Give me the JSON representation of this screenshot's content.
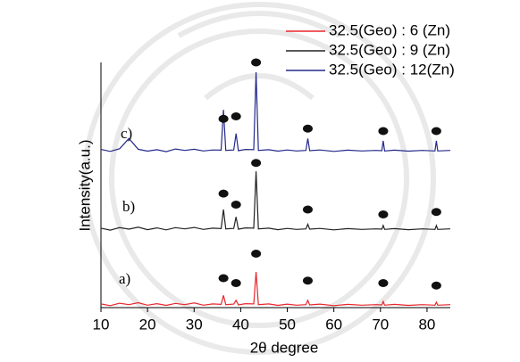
{
  "chart_data": {
    "type": "line",
    "x_label": "2θ degree",
    "y_label": "Intensity(a.u.)",
    "xlim": [
      10,
      85
    ],
    "xticks": [
      10,
      20,
      30,
      40,
      50,
      60,
      70,
      80
    ],
    "ylim": [
      0,
      100
    ],
    "legend_position": "upper right",
    "x": [
      10,
      12,
      14,
      16,
      18,
      20,
      22,
      24,
      26,
      28,
      30,
      32,
      34,
      35.8,
      36.3,
      36.8,
      38.5,
      39,
      39.5,
      41,
      42.8,
      43.3,
      43.8,
      46,
      48,
      50,
      52,
      54,
      54.4,
      54.8,
      57,
      60,
      63,
      66,
      69,
      70.3,
      70.6,
      70.9,
      73,
      76,
      79,
      81.7,
      82,
      82.3,
      85
    ],
    "series": [
      {
        "name": "32.5(Geo) : 6  (Zn)",
        "color": "#e8262b",
        "values": [
          1.5,
          0.8,
          1.8,
          1.2,
          2,
          1,
          1.6,
          0.9,
          1.7,
          1.2,
          1.9,
          1,
          1.5,
          1.3,
          5,
          1.2,
          1.4,
          3,
          1.1,
          1.6,
          1.5,
          14.5,
          1.2,
          1.5,
          0.9,
          1.4,
          1,
          1.2,
          3,
          1.1,
          1.4,
          0.8,
          1.3,
          1,
          1.2,
          1.1,
          2.5,
          1,
          1.3,
          0.9,
          1.2,
          1,
          2.2,
          1,
          1.2
        ]
      },
      {
        "name": "32.5(Geo) : 9  (Zn)",
        "color": "#222222",
        "values": [
          32.4,
          31.6,
          32.6,
          32,
          32.8,
          31.8,
          32.5,
          31.7,
          32.6,
          32.1,
          32.7,
          31.9,
          32.4,
          32.2,
          40,
          32.1,
          32.3,
          37,
          32,
          32.5,
          32.4,
          55.6,
          32.1,
          32.4,
          31.8,
          32.3,
          31.9,
          32.1,
          34,
          32,
          32.3,
          31.7,
          32.2,
          31.9,
          32.1,
          32,
          33.5,
          31.9,
          32.2,
          31.8,
          32.1,
          31.9,
          33.5,
          31.9,
          32.1
        ]
      },
      {
        "name": "32.5(Geo) : 12(Zn)",
        "color": "#24298a",
        "values": [
          64.5,
          63.7,
          64.8,
          69,
          64.6,
          63.8,
          64.4,
          63.6,
          64.7,
          64.1,
          64.6,
          63.9,
          64.3,
          64.2,
          80.7,
          64.1,
          64.3,
          71,
          64,
          64.5,
          64.4,
          96,
          64.1,
          64.4,
          63.8,
          64.3,
          63.9,
          64.1,
          69,
          64,
          64.3,
          63.7,
          64.2,
          63.9,
          64.1,
          64,
          68,
          63.9,
          64.2,
          63.8,
          64.1,
          63.9,
          68,
          63.9,
          64.1
        ]
      }
    ],
    "annotations": [
      "a)",
      "b)",
      "c)"
    ],
    "peak_markers": [
      {
        "x": [
          36.3,
          39,
          43.3,
          54.4,
          70.6,
          82
        ],
        "y": [
          12,
          10,
          22,
          11,
          10,
          9
        ]
      },
      {
        "x": [
          36.3,
          39,
          43.3,
          54.4,
          70.6,
          82
        ],
        "y": [
          46.5,
          42,
          59,
          40,
          38,
          39
        ]
      },
      {
        "x": [
          36.3,
          39,
          43.3,
          54.4,
          70.6,
          82
        ],
        "y": [
          77,
          78,
          100,
          73,
          72,
          72
        ]
      }
    ]
  }
}
